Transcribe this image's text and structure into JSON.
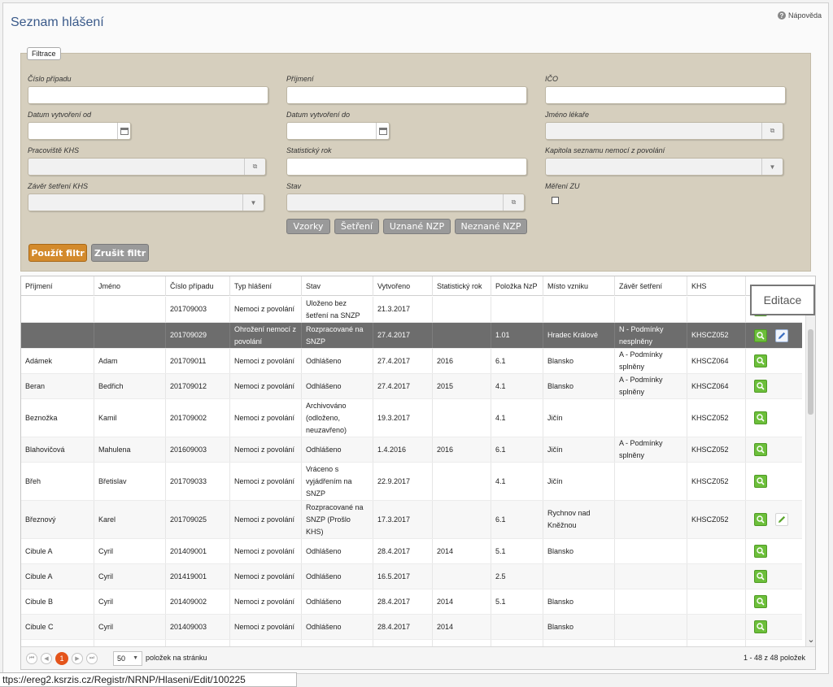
{
  "page": {
    "title": "Seznam hlášení",
    "help_label": "Nápověda"
  },
  "filter": {
    "legend": "Filtrace",
    "fields": {
      "cislo_pripadu": "Číslo případu",
      "prijmeni": "Příjmení",
      "ico": "IČO",
      "datum_od": "Datum vytvoření od",
      "datum_do": "Datum vytvoření do",
      "jmeno_lekare": "Jméno lékaře",
      "pracoviste_khs": "Pracoviště KHS",
      "statisticky_rok": "Statistický rok",
      "kapitola": "Kapitola seznamu nemocí z povolání",
      "zaver": "Závěr šetření KHS",
      "stav": "Stav",
      "mereni_zu": "Měření ZU"
    },
    "tags": [
      "Vzorky",
      "Šetření",
      "Uznané NZP",
      "Neznané NZP"
    ],
    "apply_label": "Použít filtr",
    "cancel_label": "Zrušit filtr"
  },
  "table": {
    "columns": [
      "Příjmení",
      "Jméno",
      "Číslo případu",
      "Typ hlášení",
      "Stav",
      "Vytvořeno",
      "Statistický rok",
      "Položka NzP",
      "Místo vzniku",
      "Závěr šetření",
      "KHS",
      ""
    ],
    "rows": [
      {
        "prijmeni": "",
        "jmeno": "",
        "cislo": "201709003",
        "typ": "Nemoci z povolání",
        "stav": "Uloženo bez šetření na SNZP",
        "vytvoreno": "21.3.2017",
        "rok": "",
        "polozka": "",
        "misto": "",
        "zaver": "",
        "khs": "",
        "edit": false
      },
      {
        "prijmeni": "",
        "jmeno": "",
        "cislo": "201709029",
        "typ": "Ohrožení nemocí z povolání",
        "stav": "Rozpracované na SNZP",
        "vytvoreno": "27.4.2017",
        "rok": "",
        "polozka": "1.01",
        "misto": "Hradec Králové",
        "zaver": "N - Podmínky nesplněny",
        "khs": "KHSCZ052",
        "edit": true
      },
      {
        "prijmeni": "Adámek",
        "jmeno": "Adam",
        "cislo": "201709011",
        "typ": "Nemoci z povolání",
        "stav": "Odhlášeno",
        "vytvoreno": "27.4.2017",
        "rok": "2016",
        "polozka": "6.1",
        "misto": "Blansko",
        "zaver": "A - Podmínky splněny",
        "khs": "KHSCZ064",
        "edit": false
      },
      {
        "prijmeni": "Beran",
        "jmeno": "Bedřich",
        "cislo": "201709012",
        "typ": "Nemoci z povolání",
        "stav": "Odhlášeno",
        "vytvoreno": "27.4.2017",
        "rok": "2015",
        "polozka": "4.1",
        "misto": "Blansko",
        "zaver": "A - Podmínky splněny",
        "khs": "KHSCZ064",
        "edit": false
      },
      {
        "prijmeni": "Beznožka",
        "jmeno": "Kamil",
        "cislo": "201709002",
        "typ": "Nemoci z povolání",
        "stav": "Archivováno (odloženo, neuzavřeno)",
        "vytvoreno": "19.3.2017",
        "rok": "",
        "polozka": "4.1",
        "misto": "Jičín",
        "zaver": "",
        "khs": "KHSCZ052",
        "edit": false
      },
      {
        "prijmeni": "Blahovičová",
        "jmeno": "Mahulena",
        "cislo": "201609003",
        "typ": "Nemoci z povolání",
        "stav": "Odhlášeno",
        "vytvoreno": "1.4.2016",
        "rok": "2016",
        "polozka": "6.1",
        "misto": "Jičín",
        "zaver": "A - Podmínky splněny",
        "khs": "KHSCZ052",
        "edit": false
      },
      {
        "prijmeni": "Břeh",
        "jmeno": "Břetislav",
        "cislo": "201709033",
        "typ": "Nemoci z povolání",
        "stav": "Vráceno s vyjádřením na SNZP",
        "vytvoreno": "22.9.2017",
        "rok": "",
        "polozka": "4.1",
        "misto": "Jičín",
        "zaver": "",
        "khs": "KHSCZ052",
        "edit": false
      },
      {
        "prijmeni": "Březnový",
        "jmeno": "Karel",
        "cislo": "201709025",
        "typ": "Nemoci z povolání",
        "stav": "Rozpracované na SNZP (Prošlo KHS)",
        "vytvoreno": "17.3.2017",
        "rok": "",
        "polozka": "6.1",
        "misto": "Rychnov nad Kněžnou",
        "zaver": "",
        "khs": "KHSCZ052",
        "edit": true
      },
      {
        "prijmeni": "Cibule A",
        "jmeno": "Cyril",
        "cislo": "201409001",
        "typ": "Nemoci z povolání",
        "stav": "Odhlášeno",
        "vytvoreno": "28.4.2017",
        "rok": "2014",
        "polozka": "5.1",
        "misto": "Blansko",
        "zaver": "",
        "khs": "",
        "edit": false
      },
      {
        "prijmeni": "Cibule A",
        "jmeno": "Cyril",
        "cislo": "201419001",
        "typ": "Nemoci z povolání",
        "stav": "Odhlášeno",
        "vytvoreno": "16.5.2017",
        "rok": "",
        "polozka": "2.5",
        "misto": "",
        "zaver": "",
        "khs": "",
        "edit": false
      },
      {
        "prijmeni": "Cibule B",
        "jmeno": "Cyril",
        "cislo": "201409002",
        "typ": "Nemoci z povolání",
        "stav": "Odhlášeno",
        "vytvoreno": "28.4.2017",
        "rok": "2014",
        "polozka": "5.1",
        "misto": "Blansko",
        "zaver": "",
        "khs": "",
        "edit": false
      },
      {
        "prijmeni": "Cibule C",
        "jmeno": "Cyril",
        "cislo": "201409003",
        "typ": "Nemoci z povolání",
        "stav": "Odhlášeno",
        "vytvoreno": "28.4.2017",
        "rok": "2014",
        "polozka": "",
        "misto": "Blansko",
        "zaver": "",
        "khs": "",
        "edit": false
      },
      {
        "prijmeni": "",
        "jmeno": "",
        "cislo": "",
        "typ": "Nemoci z",
        "stav": "",
        "vytvoreno": "",
        "rok": "",
        "polozka": "",
        "misto": "",
        "zaver": "",
        "khs": "",
        "edit": false
      }
    ],
    "tooltip": "Editace"
  },
  "pager": {
    "current_page": "1",
    "page_size": "50",
    "page_size_label": "položek na stránku",
    "info": "1 - 48 z 48 položek"
  },
  "statusbar": {
    "url": "ttps://ereg2.ksrzis.cz/Registr/NRNP/Hlaseni/Edit/100225"
  },
  "colors": {
    "title": "#3a5a8a",
    "filter_bg": "#d6cfbe",
    "apply": "#d38a2c",
    "selected_row": "#6d6d6d",
    "view_icon": "#6cbf3a",
    "current_page": "#e4541b"
  }
}
